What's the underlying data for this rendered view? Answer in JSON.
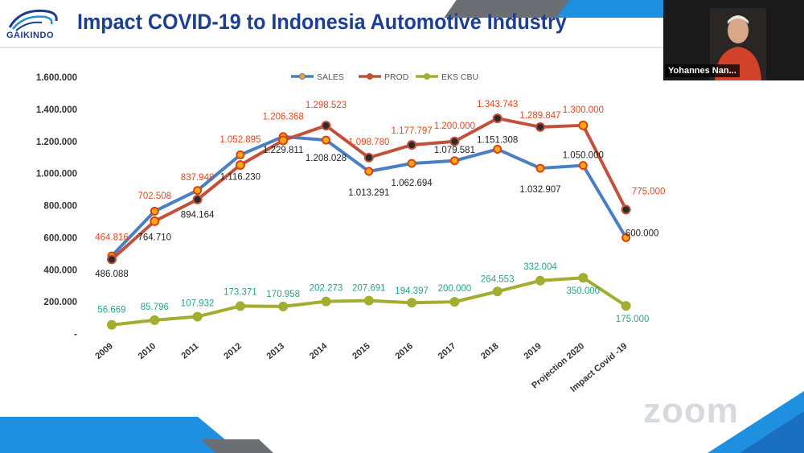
{
  "header": {
    "logo_text": "GAIKINDO",
    "title": "Impact COVID-19 to Indonesia Automotive Industry"
  },
  "video": {
    "participant_name": "Yohannes Nan..."
  },
  "watermark": "zoom",
  "colors": {
    "title": "#1c3f95",
    "accent_blue": "#1f8fe0",
    "sales": "#4a7fc4",
    "prod": "#c2513b",
    "eks": "#a3ad2f",
    "marker_fill": "#f4a81c"
  },
  "chart_data": {
    "type": "line",
    "title": "",
    "categories": [
      "2009",
      "2010",
      "2011",
      "2012",
      "2013",
      "2014",
      "2015",
      "2016",
      "2017",
      "2018",
      "2019",
      "Projection 2020",
      "Impact Covid -19"
    ],
    "ylim": [
      0,
      1600000
    ],
    "yticks": [
      "-",
      "200.000",
      "400.000",
      "600.000",
      "800.000",
      "1.000.000",
      "1.200.000",
      "1.400.000",
      "1.600.000"
    ],
    "legend_position": "top-center",
    "series": [
      {
        "name": "SALES",
        "values": [
          486088,
          764710,
          894164,
          1116230,
          1229811,
          1208028,
          1013291,
          1062694,
          1079581,
          1151308,
          1032907,
          1050000,
          600000
        ],
        "labels": [
          "486.088",
          "764.710",
          "894.164",
          "1.116.230",
          "1.229.811",
          "1.208.028",
          "1.013.291",
          "1.062.694",
          "1.079.581",
          "1.151.308",
          "1.032.907",
          "1.050.000",
          "600.000"
        ]
      },
      {
        "name": "PROD",
        "values": [
          464816,
          702508,
          837948,
          1052895,
          1206368,
          1298523,
          1098780,
          1177797,
          1200000,
          1343743,
          1289847,
          1300000,
          775000
        ],
        "labels": [
          "464.816",
          "702.508",
          "837.948",
          "1.052.895",
          "1.206.368",
          "1.298.523",
          "1.098.780",
          "1.177.797",
          "1.200.000",
          "1.343.743",
          "1.289.847",
          "1.300.000",
          "775.000"
        ]
      },
      {
        "name": "EKS CBU",
        "values": [
          56669,
          85796,
          107932,
          173371,
          170958,
          202273,
          207691,
          194397,
          200000,
          264553,
          332004,
          350000,
          175000
        ],
        "labels": [
          "56.669",
          "85.796",
          "107.932",
          "173.371",
          "170.958",
          "202.273",
          "207.691",
          "194.397",
          "200.000",
          "264.553",
          "332.004",
          "350.000",
          "175.000"
        ]
      }
    ]
  }
}
